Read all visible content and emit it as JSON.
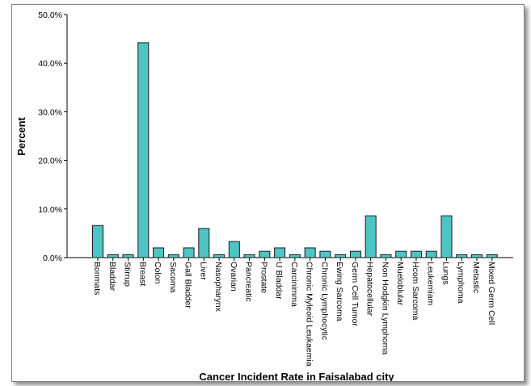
{
  "chart_data": {
    "type": "bar",
    "title": "",
    "xlabel": "Cancer Incident Rate in Faisalabad city",
    "ylabel": "Percent",
    "ylim": [
      0,
      50
    ],
    "y_ticks": [
      "0.0%",
      "10.0%",
      "20.0%",
      "30.0%",
      "40.0%",
      "50.0%"
    ],
    "y_tick_values": [
      0,
      10,
      20,
      30,
      40,
      50
    ],
    "grid": false,
    "legend": "none",
    "bar_color": "#4ec5c5",
    "bar_stroke": "#1a1a1a",
    "categories": [
      "Bonmats",
      "Bladdar",
      "Stirrup",
      "Breast",
      "Colon",
      "Sacoma",
      "Gall Bladder",
      "Liver",
      "Nasopharynx",
      "Ovarian",
      "Pancreatic",
      "Prostate",
      "U Bladdar",
      "Carcinimma",
      "Chronic Myleoid Leukaemia",
      "Chronic Lymphocytic",
      "Ewing Sarcoma",
      "Germ Cell Tumor",
      "Hepatocellular",
      "Non Hodgkin Lymphoma",
      "Mueloblular",
      "Hcom Sarcoma",
      "Leukemiam",
      "Lungs",
      "Lymphoma",
      "Metastic",
      "Mixed Germ Cell"
    ],
    "values": [
      6.6,
      0.6,
      0.6,
      44.2,
      2.0,
      0.6,
      2.0,
      6.0,
      0.6,
      3.3,
      0.6,
      1.3,
      2.0,
      0.6,
      2.0,
      1.3,
      0.6,
      1.3,
      8.6,
      0.6,
      1.3,
      1.3,
      1.3,
      8.6,
      0.6,
      0.6,
      0.6
    ]
  }
}
